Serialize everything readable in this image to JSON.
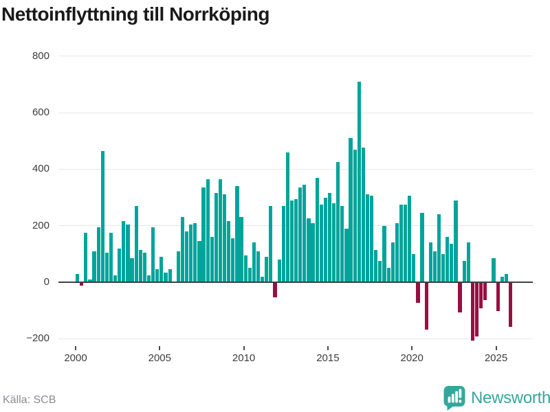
{
  "title": "Nettoinflyttning till Norrköping",
  "footer": {
    "source": "Källa: SCB"
  },
  "brand": {
    "name": "Newsworthy"
  },
  "colors": {
    "positive": "#00A49B",
    "negative": "#9A0E42",
    "brand_teal": "#34A79C",
    "grid": "#E8E8E8",
    "zero_line": "#3F3F3F",
    "title_text": "#1A1A1A",
    "axis_text": "#3C3C3C",
    "source_text": "#8B8B93"
  },
  "chart_data": {
    "type": "bar",
    "title": "Nettoinflyttning till Norrköping",
    "start": "2000 Q1",
    "frequency": "quarterly",
    "values": [
      30,
      -10,
      175,
      10,
      110,
      195,
      465,
      105,
      175,
      25,
      120,
      215,
      205,
      85,
      270,
      115,
      105,
      25,
      195,
      45,
      90,
      35,
      45,
      0,
      110,
      230,
      180,
      205,
      210,
      145,
      335,
      365,
      160,
      315,
      365,
      310,
      215,
      155,
      340,
      230,
      95,
      50,
      140,
      110,
      20,
      90,
      270,
      -50,
      80,
      270,
      460,
      290,
      295,
      335,
      345,
      225,
      210,
      370,
      275,
      300,
      315,
      280,
      425,
      270,
      190,
      510,
      470,
      710,
      475,
      310,
      305,
      115,
      75,
      200,
      50,
      140,
      210,
      275,
      275,
      305,
      100,
      -70,
      245,
      -165,
      140,
      110,
      240,
      100,
      160,
      135,
      290,
      -105,
      75,
      140,
      -205,
      -190,
      -90,
      -60,
      0,
      85,
      -100,
      20,
      30,
      -155
    ],
    "y_ticks": [
      {
        "value": 800,
        "label": "800"
      },
      {
        "value": 600,
        "label": "600"
      },
      {
        "value": 400,
        "label": "400"
      },
      {
        "value": 200,
        "label": "200"
      },
      {
        "value": 0,
        "label": "0"
      },
      {
        "value": -200,
        "label": "−200"
      }
    ],
    "x_ticks": [
      {
        "value": 2000,
        "label": "2000"
      },
      {
        "value": 2005,
        "label": "2005"
      },
      {
        "value": 2010,
        "label": "2010"
      },
      {
        "value": 2015,
        "label": "2015"
      },
      {
        "value": 2020,
        "label": "2020"
      },
      {
        "value": 2025,
        "label": "2025"
      }
    ],
    "ylim": [
      -260,
      820
    ],
    "grid": "horizontal",
    "legend": "none"
  }
}
